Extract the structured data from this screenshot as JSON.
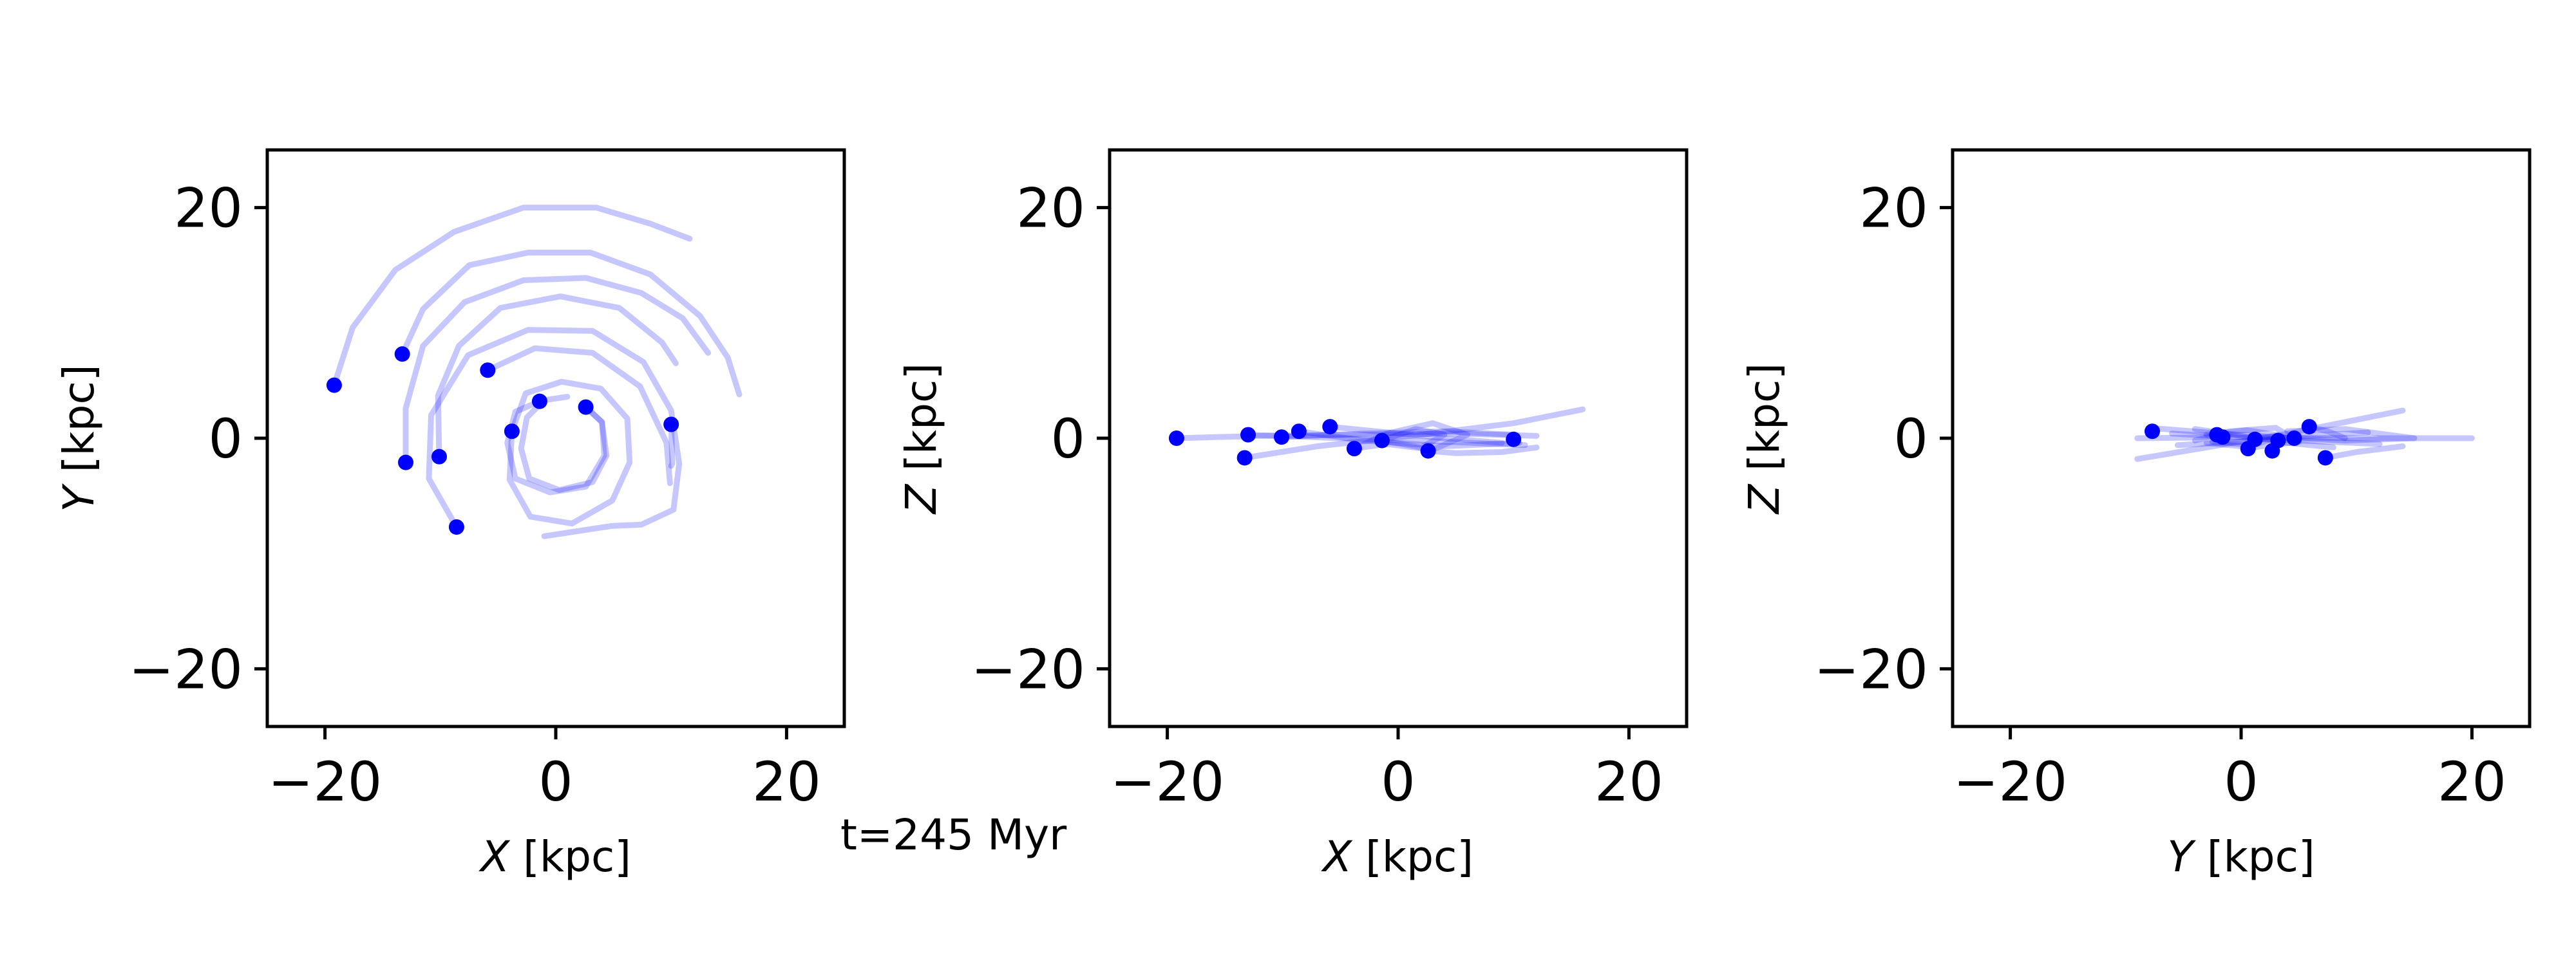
{
  "figure": {
    "time_label": "t=245 Myr",
    "time_label_color": "#0000ff",
    "track_color": "#0000ff",
    "track_opacity": 0.22,
    "point_color": "#0000ff"
  },
  "chart_data": [
    {
      "type": "scatter",
      "panel": "xy",
      "xlabel_var": "X",
      "xlabel_unit": "[kpc]",
      "ylabel_var": "Y",
      "ylabel_unit": "[kpc]",
      "xlim": [
        -25,
        25
      ],
      "ylim": [
        -25,
        25
      ],
      "xticks": [
        {
          "v": -20,
          "label": "−20"
        },
        {
          "v": 0,
          "label": "0"
        },
        {
          "v": 20,
          "label": "20"
        }
      ],
      "yticks": [
        {
          "v": -20,
          "label": "−20"
        },
        {
          "v": 0,
          "label": "0"
        },
        {
          "v": 20,
          "label": "20"
        }
      ],
      "grid": false,
      "points": [
        {
          "x": -19.2,
          "y": 4.6
        },
        {
          "x": -13.3,
          "y": 7.3
        },
        {
          "x": -13.0,
          "y": -2.1
        },
        {
          "x": -10.1,
          "y": -1.6
        },
        {
          "x": -8.6,
          "y": -7.7
        },
        {
          "x": -5.9,
          "y": 5.9
        },
        {
          "x": -3.8,
          "y": 0.6
        },
        {
          "x": -1.4,
          "y": 3.2
        },
        {
          "x": 2.6,
          "y": 2.7
        },
        {
          "x": 10.0,
          "y": 1.2
        }
      ],
      "tracks": [
        [
          [
            -19.2,
            4.6
          ],
          [
            -17.6,
            9.6
          ],
          [
            -13.9,
            14.6
          ],
          [
            -8.8,
            17.9
          ],
          [
            -2.8,
            20.0
          ],
          [
            3.5,
            20.0
          ],
          [
            8.2,
            18.6
          ],
          [
            11.6,
            17.3
          ]
        ],
        [
          [
            -13.3,
            7.3
          ],
          [
            -11.5,
            11.2
          ],
          [
            -7.5,
            15.0
          ],
          [
            -2.4,
            16.1
          ],
          [
            3.0,
            16.1
          ],
          [
            8.2,
            14.2
          ],
          [
            12.5,
            10.6
          ],
          [
            14.9,
            7.0
          ],
          [
            15.9,
            3.8
          ]
        ],
        [
          [
            -13.0,
            -2.1
          ],
          [
            -13.0,
            2.6
          ],
          [
            -11.5,
            8.0
          ],
          [
            -7.9,
            11.8
          ],
          [
            -2.8,
            13.7
          ],
          [
            2.6,
            13.9
          ],
          [
            7.4,
            12.6
          ],
          [
            11.0,
            10.4
          ],
          [
            13.2,
            7.4
          ]
        ],
        [
          [
            -10.1,
            -1.6
          ],
          [
            -10.2,
            3.7
          ],
          [
            -8.4,
            8.0
          ],
          [
            -4.8,
            11.3
          ],
          [
            0.4,
            12.3
          ],
          [
            5.5,
            11.3
          ],
          [
            9.2,
            8.3
          ],
          [
            10.4,
            6.5
          ]
        ],
        [
          [
            -8.6,
            -7.7
          ],
          [
            -11.0,
            -3.5
          ],
          [
            -10.8,
            2.0
          ],
          [
            -7.6,
            7.2
          ],
          [
            -2.4,
            9.4
          ],
          [
            3.2,
            9.3
          ],
          [
            7.6,
            6.6
          ],
          [
            10.0,
            2.4
          ],
          [
            10.7,
            -2.2
          ],
          [
            10.2,
            -6.2
          ],
          [
            7.4,
            -7.5
          ],
          [
            4.9,
            -7.6
          ],
          [
            -1.0,
            -8.5
          ]
        ],
        [
          [
            -5.9,
            5.9
          ],
          [
            -1.8,
            7.8
          ],
          [
            3.2,
            7.4
          ],
          [
            7.3,
            4.5
          ],
          [
            9.6,
            -0.4
          ],
          [
            9.9,
            -3.9
          ]
        ],
        [
          [
            -3.8,
            0.6
          ],
          [
            -4.0,
            -3.6
          ],
          [
            -2.2,
            -6.8
          ],
          [
            1.4,
            -7.4
          ],
          [
            4.9,
            -5.4
          ],
          [
            6.4,
            -2.1
          ],
          [
            6.2,
            1.7
          ],
          [
            3.9,
            4.3
          ],
          [
            0.5,
            4.9
          ],
          [
            -2.6,
            3.9
          ],
          [
            -3.8,
            0.6
          ]
        ],
        [
          [
            -1.4,
            3.2
          ],
          [
            -3.5,
            2.3
          ],
          [
            -4.2,
            -0.4
          ],
          [
            -3.5,
            -3.5
          ],
          [
            -0.5,
            -4.7
          ],
          [
            2.6,
            -4.2
          ],
          [
            4.2,
            -1.5
          ],
          [
            4.0,
            1.4
          ],
          [
            2.6,
            2.7
          ]
        ],
        [
          [
            2.6,
            2.7
          ],
          [
            4.0,
            1.4
          ],
          [
            4.4,
            -1.5
          ],
          [
            3.2,
            -3.8
          ],
          [
            0.3,
            -4.5
          ],
          [
            -2.3,
            -3.5
          ],
          [
            -3.0,
            -0.9
          ],
          [
            -2.5,
            1.8
          ],
          [
            -1.0,
            3.3
          ],
          [
            1.0,
            3.6
          ]
        ],
        [
          [
            10.0,
            1.2
          ],
          [
            10.1,
            -2.2
          ],
          [
            10.0,
            -2.4
          ]
        ]
      ]
    },
    {
      "type": "scatter",
      "panel": "xz",
      "xlabel_var": "X",
      "xlabel_unit": "[kpc]",
      "ylabel_var": "Z",
      "ylabel_unit": "[kpc]",
      "xlim": [
        -25,
        25
      ],
      "ylim": [
        -25,
        25
      ],
      "xticks": [
        {
          "v": -20,
          "label": "−20"
        },
        {
          "v": 0,
          "label": "0"
        },
        {
          "v": 20,
          "label": "20"
        }
      ],
      "yticks": [
        {
          "v": -20,
          "label": "−20"
        },
        {
          "v": 0,
          "label": "0"
        },
        {
          "v": 20,
          "label": "20"
        }
      ],
      "grid": false,
      "points": [
        {
          "x": -19.2,
          "y": 0.0
        },
        {
          "x": -13.3,
          "y": -1.7
        },
        {
          "x": -13.0,
          "y": 0.3
        },
        {
          "x": -10.1,
          "y": 0.1
        },
        {
          "x": -8.6,
          "y": 0.6
        },
        {
          "x": -5.9,
          "y": 1.0
        },
        {
          "x": -3.8,
          "y": -0.9
        },
        {
          "x": -1.4,
          "y": -0.2
        },
        {
          "x": 2.6,
          "y": -1.1
        },
        {
          "x": 10.0,
          "y": -0.1
        }
      ],
      "tracks": [
        [
          [
            -19.2,
            0.0
          ],
          [
            -12.0,
            0.2
          ],
          [
            -3.0,
            0.3
          ],
          [
            5.0,
            0.4
          ],
          [
            12.0,
            0.2
          ]
        ],
        [
          [
            -13.3,
            -1.7
          ],
          [
            -7.0,
            -0.7
          ],
          [
            2.0,
            0.3
          ],
          [
            10.0,
            1.3
          ],
          [
            16.0,
            2.5
          ]
        ],
        [
          [
            -13.0,
            0.3
          ],
          [
            -5.0,
            0.0
          ],
          [
            4.0,
            -0.3
          ],
          [
            11.0,
            -0.6
          ]
        ],
        [
          [
            -10.1,
            0.1
          ],
          [
            -3.0,
            0.4
          ],
          [
            4.0,
            0.6
          ],
          [
            10.0,
            0.3
          ]
        ],
        [
          [
            -8.6,
            0.6
          ],
          [
            -3.0,
            -0.2
          ],
          [
            4.0,
            -0.7
          ],
          [
            10.5,
            -0.4
          ]
        ],
        [
          [
            -5.9,
            1.0
          ],
          [
            -1.0,
            0.5
          ],
          [
            4.0,
            0.0
          ],
          [
            9.0,
            -0.4
          ]
        ],
        [
          [
            -3.8,
            -0.9
          ],
          [
            -1.0,
            0.4
          ],
          [
            3.0,
            1.3
          ],
          [
            6.0,
            0.3
          ],
          [
            3.0,
            -1.0
          ],
          [
            -1.0,
            -0.5
          ],
          [
            -3.8,
            -0.9
          ]
        ],
        [
          [
            -1.4,
            -0.2
          ],
          [
            1.5,
            0.8
          ],
          [
            4.0,
            0.3
          ],
          [
            2.0,
            -0.8
          ],
          [
            -1.4,
            -0.2
          ]
        ],
        [
          [
            2.6,
            -1.1
          ],
          [
            5.0,
            -1.3
          ],
          [
            9.0,
            -1.2
          ],
          [
            12.0,
            -0.8
          ]
        ],
        [
          [
            10.0,
            -0.1
          ],
          [
            10.0,
            0.1
          ]
        ]
      ]
    },
    {
      "type": "scatter",
      "panel": "yz",
      "xlabel_var": "Y",
      "xlabel_unit": "[kpc]",
      "ylabel_var": "Z",
      "ylabel_unit": "[kpc]",
      "xlim": [
        -25,
        25
      ],
      "ylim": [
        -25,
        25
      ],
      "xticks": [
        {
          "v": -20,
          "label": "−20"
        },
        {
          "v": 0,
          "label": "0"
        },
        {
          "v": 20,
          "label": "20"
        }
      ],
      "yticks": [
        {
          "v": -20,
          "label": "−20"
        },
        {
          "v": 0,
          "label": "0"
        },
        {
          "v": 20,
          "label": "20"
        }
      ],
      "grid": false,
      "points": [
        {
          "x": -7.7,
          "y": 0.6
        },
        {
          "x": -2.1,
          "y": 0.3
        },
        {
          "x": -1.6,
          "y": 0.1
        },
        {
          "x": 0.6,
          "y": -0.9
        },
        {
          "x": 1.2,
          "y": -0.1
        },
        {
          "x": 2.7,
          "y": -1.1
        },
        {
          "x": 3.2,
          "y": -0.2
        },
        {
          "x": 4.6,
          "y": 0.0
        },
        {
          "x": 5.9,
          "y": 1.0
        },
        {
          "x": 7.3,
          "y": -1.7
        }
      ],
      "tracks": [
        [
          [
            -9.0,
            0.0
          ],
          [
            0.0,
            0.1
          ],
          [
            10.0,
            0.0
          ],
          [
            20.0,
            0.0
          ]
        ],
        [
          [
            -9.0,
            -1.8
          ],
          [
            -3.0,
            -0.8
          ],
          [
            4.0,
            0.4
          ],
          [
            9.0,
            1.4
          ],
          [
            14.0,
            2.4
          ]
        ],
        [
          [
            -8.0,
            0.9
          ],
          [
            -3.0,
            0.5
          ],
          [
            3.0,
            0.1
          ],
          [
            9.0,
            -0.2
          ],
          [
            15.0,
            0.0
          ],
          [
            9.0,
            0.8
          ],
          [
            4.0,
            0.6
          ]
        ],
        [
          [
            -6.0,
            0.4
          ],
          [
            -1.0,
            0.1
          ],
          [
            5.0,
            -0.2
          ],
          [
            12.0,
            -0.5
          ]
        ],
        [
          [
            -5.5,
            -0.6
          ],
          [
            0.0,
            -0.3
          ],
          [
            6.0,
            0.2
          ],
          [
            11.0,
            0.5
          ]
        ],
        [
          [
            -4.0,
            0.8
          ],
          [
            0.0,
            0.2
          ],
          [
            4.0,
            -0.4
          ],
          [
            8.0,
            -0.8
          ]
        ],
        [
          [
            -4.0,
            -0.2
          ],
          [
            -1.0,
            0.6
          ],
          [
            3.0,
            0.9
          ],
          [
            5.0,
            -0.3
          ],
          [
            1.0,
            -0.8
          ],
          [
            -3.0,
            -0.4
          ]
        ],
        [
          [
            -3.0,
            0.3
          ],
          [
            0.5,
            0.7
          ],
          [
            3.5,
            0.2
          ],
          [
            1.0,
            -0.6
          ],
          [
            -2.5,
            -0.3
          ]
        ],
        [
          [
            7.3,
            -1.7
          ],
          [
            10.0,
            -1.2
          ],
          [
            14.0,
            -0.7
          ]
        ],
        [
          [
            5.9,
            1.0
          ],
          [
            7.5,
            0.6
          ],
          [
            9.0,
            0.0
          ]
        ]
      ]
    }
  ]
}
